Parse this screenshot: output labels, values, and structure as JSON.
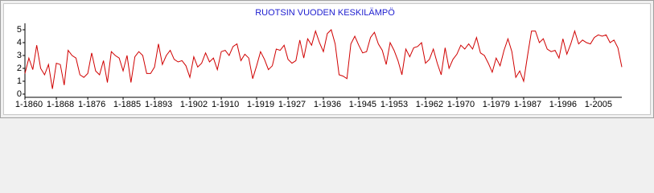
{
  "chart_data": {
    "type": "line",
    "title": "RUOTSIN VUODEN KESKILÄMPÖ",
    "x": [
      1860,
      1861,
      1862,
      1863,
      1864,
      1865,
      1866,
      1867,
      1868,
      1869,
      1870,
      1871,
      1872,
      1873,
      1874,
      1875,
      1876,
      1877,
      1878,
      1879,
      1880,
      1881,
      1882,
      1883,
      1884,
      1885,
      1886,
      1887,
      1888,
      1889,
      1890,
      1891,
      1892,
      1893,
      1894,
      1895,
      1896,
      1897,
      1898,
      1899,
      1900,
      1901,
      1902,
      1903,
      1904,
      1905,
      1906,
      1907,
      1908,
      1909,
      1910,
      1911,
      1912,
      1913,
      1914,
      1915,
      1916,
      1917,
      1918,
      1919,
      1920,
      1921,
      1922,
      1923,
      1924,
      1925,
      1926,
      1927,
      1928,
      1929,
      1930,
      1931,
      1932,
      1933,
      1934,
      1935,
      1936,
      1937,
      1938,
      1939,
      1940,
      1941,
      1942,
      1943,
      1944,
      1945,
      1946,
      1947,
      1948,
      1949,
      1950,
      1951,
      1952,
      1953,
      1954,
      1955,
      1956,
      1957,
      1958,
      1959,
      1960,
      1961,
      1962,
      1963,
      1964,
      1965,
      1966,
      1967,
      1968,
      1969,
      1970,
      1971,
      1972,
      1973,
      1974,
      1975,
      1976,
      1977,
      1978,
      1979,
      1980,
      1981,
      1982,
      1983,
      1984,
      1985,
      1986,
      1987,
      1988,
      1989,
      1990,
      1991,
      1992,
      1993,
      1994,
      1995,
      1996,
      1997,
      1998,
      1999,
      2000,
      2001,
      2002,
      2003,
      2004,
      2005,
      2006,
      2007,
      2008,
      2009,
      2010,
      2011,
      2012
    ],
    "series": [
      {
        "color": "#d00000",
        "values": [
          1.6,
          2.8,
          1.9,
          3.8,
          2.0,
          1.5,
          2.3,
          0.4,
          2.4,
          2.3,
          0.7,
          3.4,
          3.0,
          2.8,
          1.5,
          1.3,
          1.6,
          3.2,
          1.8,
          1.5,
          2.6,
          0.9,
          3.3,
          3.0,
          2.8,
          1.8,
          3.0,
          0.9,
          2.9,
          3.3,
          3.0,
          1.6,
          1.6,
          2.1,
          3.9,
          2.3,
          3.0,
          3.4,
          2.7,
          2.5,
          2.6,
          2.2,
          1.3,
          2.9,
          2.1,
          2.4,
          3.2,
          2.5,
          2.8,
          1.9,
          3.3,
          3.4,
          3.0,
          3.7,
          3.9,
          2.6,
          3.1,
          2.8,
          1.2,
          2.2,
          3.3,
          2.7,
          1.9,
          2.2,
          3.5,
          3.4,
          3.8,
          2.7,
          2.4,
          2.6,
          4.2,
          2.8,
          4.3,
          3.8,
          4.9,
          4.0,
          3.3,
          4.7,
          5.0,
          3.9,
          1.5,
          1.4,
          1.2,
          3.9,
          4.5,
          3.8,
          3.2,
          3.3,
          4.4,
          4.8,
          3.9,
          3.4,
          2.3,
          4.0,
          3.4,
          2.6,
          1.5,
          3.5,
          2.9,
          3.6,
          3.7,
          4.0,
          2.4,
          2.7,
          3.5,
          2.4,
          1.5,
          3.6,
          2.0,
          2.7,
          3.1,
          3.8,
          3.5,
          3.9,
          3.5,
          4.4,
          3.2,
          3.0,
          2.4,
          1.7,
          2.8,
          2.2,
          3.4,
          4.3,
          3.3,
          1.3,
          1.8,
          1.0,
          3.0,
          4.9,
          4.9,
          4.0,
          4.3,
          3.5,
          3.3,
          3.4,
          2.8,
          4.3,
          3.1,
          3.9,
          4.9,
          3.9,
          4.2,
          4.0,
          3.9,
          4.4,
          4.6,
          4.5,
          4.6,
          4.0,
          4.2,
          3.6,
          2.1
        ]
      }
    ],
    "xlim": [
      1860,
      2012
    ],
    "xticks": [
      {
        "value": 1860,
        "label": "1-1860"
      },
      {
        "value": 1868,
        "label": "1-1868"
      },
      {
        "value": 1876,
        "label": "1-1876"
      },
      {
        "value": 1885,
        "label": "1-1885"
      },
      {
        "value": 1893,
        "label": "1-1893"
      },
      {
        "value": 1902,
        "label": "1-1902"
      },
      {
        "value": 1910,
        "label": "1-1910"
      },
      {
        "value": 1919,
        "label": "1-1919"
      },
      {
        "value": 1927,
        "label": "1-1927"
      },
      {
        "value": 1936,
        "label": "1-1936"
      },
      {
        "value": 1945,
        "label": "1-1945"
      },
      {
        "value": 1953,
        "label": "1-1953"
      },
      {
        "value": 1962,
        "label": "1-1962"
      },
      {
        "value": 1970,
        "label": "1-1970"
      },
      {
        "value": 1979,
        "label": "1-1979"
      },
      {
        "value": 1987,
        "label": "1-1987"
      },
      {
        "value": 1996,
        "label": "1-1996"
      },
      {
        "value": 2005,
        "label": "1-2005"
      }
    ],
    "ylim": [
      -0.25,
      5.5
    ],
    "yticks": [
      0,
      1,
      2,
      3,
      4,
      5
    ]
  }
}
